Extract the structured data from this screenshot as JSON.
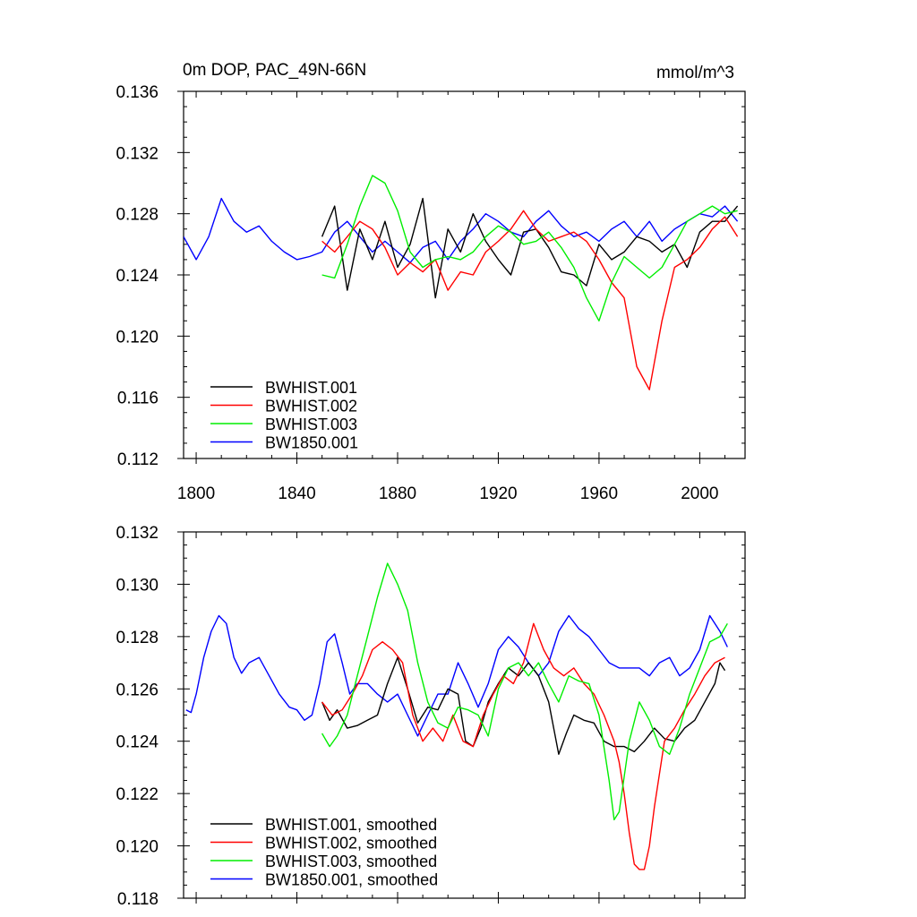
{
  "chart_data": [
    {
      "type": "line",
      "title": "0m DOP, PAC_49N-66N",
      "units": "mmol/m^3",
      "xlim": [
        1795,
        2018
      ],
      "ylim": [
        0.112,
        0.136
      ],
      "x_ticks": [
        1800,
        1840,
        1880,
        1920,
        1960,
        2000
      ],
      "x_tick_labels": [
        "1800",
        "1840",
        "1880",
        "1920",
        "1960",
        "2000"
      ],
      "y_ticks": [
        0.112,
        0.116,
        0.12,
        0.124,
        0.128,
        0.132,
        0.136
      ],
      "y_tick_labels": [
        "0.112",
        "0.116",
        "0.120",
        "0.124",
        "0.128",
        "0.132",
        "0.136"
      ],
      "legend_position": "bottom-left",
      "series": [
        {
          "name": "BWHIST.001",
          "color": "#000000",
          "x_start": 1850,
          "x_step": 5,
          "values": [
            0.1265,
            0.1285,
            0.123,
            0.127,
            0.125,
            0.1275,
            0.1245,
            0.126,
            0.129,
            0.1225,
            0.127,
            0.1255,
            0.128,
            0.1262,
            0.125,
            0.124,
            0.1268,
            0.127,
            0.1258,
            0.1242,
            0.124,
            0.1233,
            0.126,
            0.125,
            0.1255,
            0.1265,
            0.1262,
            0.1255,
            0.126,
            0.1245,
            0.1268,
            0.1275,
            0.1275,
            0.1285
          ]
        },
        {
          "name": "BWHIST.002",
          "color": "#ff0000",
          "x_start": 1850,
          "x_step": 5,
          "values": [
            0.1262,
            0.1255,
            0.1265,
            0.1275,
            0.127,
            0.1258,
            0.124,
            0.1248,
            0.1242,
            0.125,
            0.123,
            0.1242,
            0.124,
            0.1255,
            0.1262,
            0.127,
            0.1282,
            0.127,
            0.1262,
            0.1265,
            0.1268,
            0.1262,
            0.125,
            0.1235,
            0.1225,
            0.118,
            0.1165,
            0.121,
            0.1245,
            0.125,
            0.1258,
            0.127,
            0.1278,
            0.1265
          ]
        },
        {
          "name": "BWHIST.003",
          "color": "#00ee00",
          "x_start": 1850,
          "x_step": 5,
          "values": [
            0.124,
            0.1238,
            0.126,
            0.1285,
            0.1305,
            0.13,
            0.1282,
            0.1255,
            0.1245,
            0.125,
            0.1252,
            0.125,
            0.1255,
            0.1265,
            0.1272,
            0.1268,
            0.126,
            0.1262,
            0.1268,
            0.1258,
            0.1245,
            0.1225,
            0.121,
            0.1235,
            0.1252,
            0.1245,
            0.1238,
            0.1245,
            0.126,
            0.1275,
            0.128,
            0.1285,
            0.128,
            0.1282
          ]
        },
        {
          "name": "BW1850.001",
          "color": "#0000ff",
          "x_start": 1795,
          "x_step": 5,
          "values": [
            0.1265,
            0.125,
            0.1265,
            0.129,
            0.1275,
            0.1268,
            0.1272,
            0.1262,
            0.1255,
            0.125,
            0.1252,
            0.1255,
            0.1268,
            0.1275,
            0.1265,
            0.1255,
            0.1262,
            0.1255,
            0.1248,
            0.1258,
            0.1262,
            0.125,
            0.1262,
            0.127,
            0.128,
            0.1275,
            0.1268,
            0.1265,
            0.1275,
            0.1282,
            0.1272,
            0.1265,
            0.1268,
            0.1262,
            0.127,
            0.1275,
            0.1265,
            0.1275,
            0.1262,
            0.127,
            0.1275,
            0.128,
            0.1278,
            0.1285,
            0.1275
          ]
        }
      ]
    },
    {
      "type": "line",
      "title": "",
      "xlim": [
        1795,
        2018
      ],
      "ylim": [
        0.118,
        0.132
      ],
      "x_ticks": [
        1800,
        1840,
        1880,
        1920,
        1960,
        2000
      ],
      "x_tick_labels": [],
      "y_ticks": [
        0.118,
        0.12,
        0.122,
        0.124,
        0.126,
        0.128,
        0.13,
        0.132
      ],
      "y_tick_labels": [
        "0.118",
        "0.120",
        "0.122",
        "0.124",
        "0.126",
        "0.128",
        "0.130",
        "0.132"
      ],
      "legend_position": "bottom-left",
      "series": [
        {
          "name": "BWHIST.001, smoothed",
          "color": "#000000",
          "x": [
            1850,
            1853,
            1856,
            1860,
            1864,
            1868,
            1872,
            1876,
            1880,
            1884,
            1888,
            1892,
            1896,
            1900,
            1904,
            1907,
            1910,
            1913,
            1916,
            1920,
            1924,
            1928,
            1932,
            1936,
            1940,
            1944,
            1947,
            1950,
            1954,
            1958,
            1962,
            1966,
            1970,
            1974,
            1978,
            1982,
            1986,
            1990,
            1994,
            1998,
            2002,
            2006,
            2008,
            2010
          ],
          "values": [
            0.1255,
            0.1248,
            0.1252,
            0.1245,
            0.1246,
            0.1248,
            0.125,
            0.1262,
            0.1272,
            0.126,
            0.1247,
            0.1253,
            0.1252,
            0.126,
            0.1258,
            0.124,
            0.1238,
            0.1245,
            0.1255,
            0.1262,
            0.1268,
            0.1265,
            0.127,
            0.1265,
            0.1255,
            0.1235,
            0.1243,
            0.125,
            0.1248,
            0.1247,
            0.124,
            0.1238,
            0.1238,
            0.1236,
            0.124,
            0.1245,
            0.1241,
            0.124,
            0.1245,
            0.1248,
            0.1255,
            0.1262,
            0.127,
            0.1267
          ]
        },
        {
          "name": "BWHIST.002, smoothed",
          "color": "#ff0000",
          "x": [
            1850,
            1854,
            1858,
            1862,
            1866,
            1870,
            1874,
            1878,
            1882,
            1886,
            1890,
            1894,
            1898,
            1902,
            1906,
            1910,
            1914,
            1918,
            1922,
            1926,
            1930,
            1934,
            1938,
            1942,
            1946,
            1950,
            1954,
            1958,
            1962,
            1966,
            1968,
            1970,
            1972,
            1974,
            1976,
            1978,
            1980,
            1982,
            1986,
            1990,
            1994,
            1998,
            2002,
            2006,
            2010
          ],
          "values": [
            0.1255,
            0.125,
            0.1252,
            0.1258,
            0.1265,
            0.1275,
            0.1278,
            0.1275,
            0.127,
            0.125,
            0.124,
            0.1245,
            0.124,
            0.125,
            0.124,
            0.1238,
            0.125,
            0.1258,
            0.1265,
            0.1262,
            0.127,
            0.1285,
            0.1275,
            0.1268,
            0.1265,
            0.1268,
            0.1262,
            0.1258,
            0.125,
            0.124,
            0.1232,
            0.122,
            0.1205,
            0.1193,
            0.1191,
            0.1191,
            0.12,
            0.1215,
            0.124,
            0.1245,
            0.1252,
            0.1258,
            0.1265,
            0.127,
            0.1272
          ]
        },
        {
          "name": "BWHIST.003, smoothed",
          "color": "#00ee00",
          "x": [
            1850,
            1853,
            1856,
            1860,
            1864,
            1868,
            1872,
            1876,
            1880,
            1884,
            1888,
            1892,
            1896,
            1900,
            1904,
            1908,
            1912,
            1916,
            1920,
            1924,
            1928,
            1932,
            1936,
            1940,
            1944,
            1948,
            1952,
            1956,
            1960,
            1964,
            1966,
            1968,
            1972,
            1976,
            1980,
            1984,
            1988,
            1992,
            1996,
            2000,
            2004,
            2008,
            2011
          ],
          "values": [
            0.1243,
            0.1238,
            0.1242,
            0.125,
            0.1265,
            0.128,
            0.1295,
            0.1308,
            0.13,
            0.129,
            0.127,
            0.1255,
            0.1247,
            0.1245,
            0.1253,
            0.1252,
            0.125,
            0.1242,
            0.126,
            0.1268,
            0.127,
            0.1265,
            0.127,
            0.1262,
            0.1255,
            0.1265,
            0.1263,
            0.1262,
            0.125,
            0.1225,
            0.121,
            0.1213,
            0.124,
            0.1255,
            0.1248,
            0.1238,
            0.1235,
            0.1245,
            0.1258,
            0.1268,
            0.1278,
            0.128,
            0.1285
          ]
        },
        {
          "name": "BW1850.001, smoothed",
          "color": "#0000ff",
          "x": [
            1796,
            1798,
            1800,
            1803,
            1806,
            1809,
            1812,
            1815,
            1818,
            1821,
            1825,
            1829,
            1833,
            1837,
            1840,
            1843,
            1846,
            1849,
            1852,
            1855,
            1858,
            1861,
            1864,
            1868,
            1872,
            1876,
            1880,
            1884,
            1888,
            1892,
            1896,
            1900,
            1904,
            1908,
            1912,
            1916,
            1920,
            1924,
            1928,
            1932,
            1936,
            1940,
            1944,
            1948,
            1952,
            1956,
            1960,
            1964,
            1968,
            1972,
            1976,
            1980,
            1984,
            1988,
            1992,
            1996,
            2000,
            2004,
            2008,
            2011
          ],
          "values": [
            0.1252,
            0.1251,
            0.1258,
            0.1272,
            0.1282,
            0.1288,
            0.1285,
            0.1272,
            0.1266,
            0.127,
            0.1272,
            0.1265,
            0.1258,
            0.1253,
            0.1252,
            0.1248,
            0.125,
            0.1262,
            0.1278,
            0.1281,
            0.127,
            0.1258,
            0.1262,
            0.1262,
            0.1258,
            0.1255,
            0.1258,
            0.125,
            0.1242,
            0.125,
            0.1258,
            0.1258,
            0.127,
            0.1262,
            0.1253,
            0.1262,
            0.1275,
            0.128,
            0.1276,
            0.127,
            0.1265,
            0.127,
            0.1282,
            0.1288,
            0.1283,
            0.128,
            0.1275,
            0.127,
            0.1268,
            0.1268,
            0.1268,
            0.1265,
            0.127,
            0.1272,
            0.1265,
            0.1268,
            0.1275,
            0.1288,
            0.1282,
            0.1276
          ]
        }
      ]
    }
  ]
}
